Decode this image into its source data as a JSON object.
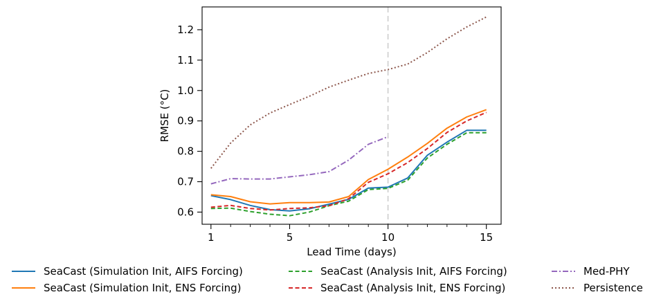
{
  "chart_data": {
    "type": "line",
    "xlabel": "Lead Time (days)",
    "ylabel": "RMSE (°C)",
    "xlim": [
      0.55,
      15.75
    ],
    "ylim": [
      0.56,
      1.275
    ],
    "x_ticks": [
      1,
      5,
      10,
      15
    ],
    "x_minor_ticks": [
      2,
      3,
      4,
      6,
      7,
      8,
      9,
      11,
      12,
      13,
      14
    ],
    "y_ticks": [
      0.6,
      0.7,
      0.8,
      0.9,
      1.0,
      1.1,
      1.2
    ],
    "y_tick_labels": [
      "0.6",
      "0.7",
      "0.8",
      "0.9",
      "1.0",
      "1.1",
      "1.2"
    ],
    "reference_line_x": 10,
    "grid": false,
    "legend_placement": "below",
    "series": [
      {
        "name": "SeaCast (Simulation Init, AIFS Forcing)",
        "color": "#1f77b4",
        "dash": "solid",
        "x": [
          1,
          2,
          3,
          4,
          5,
          6,
          7,
          8,
          9,
          10,
          11,
          12,
          13,
          14,
          15
        ],
        "values": [
          0.654,
          0.641,
          0.622,
          0.608,
          0.604,
          0.611,
          0.626,
          0.642,
          0.679,
          0.682,
          0.712,
          0.787,
          0.83,
          0.869,
          0.869
        ]
      },
      {
        "name": "SeaCast (Simulation Init, ENS Forcing)",
        "color": "#ff7f0e",
        "dash": "solid",
        "x": [
          1,
          2,
          3,
          4,
          5,
          6,
          7,
          8,
          9,
          10,
          11,
          12,
          13,
          14,
          15
        ],
        "values": [
          0.657,
          0.651,
          0.634,
          0.627,
          0.631,
          0.631,
          0.633,
          0.651,
          0.707,
          0.741,
          0.781,
          0.826,
          0.876,
          0.913,
          0.937
        ]
      },
      {
        "name": "SeaCast (Analysis Init, AIFS Forcing)",
        "color": "#2ca02c",
        "dash": "dashed",
        "x": [
          1,
          2,
          3,
          4,
          5,
          6,
          7,
          8,
          9,
          10,
          11,
          12,
          13,
          14,
          15
        ],
        "values": [
          0.612,
          0.613,
          0.602,
          0.593,
          0.588,
          0.6,
          0.621,
          0.636,
          0.674,
          0.678,
          0.705,
          0.778,
          0.823,
          0.861,
          0.861
        ]
      },
      {
        "name": "SeaCast (Analysis Init, ENS Forcing)",
        "color": "#d62728",
        "dash": "dashed",
        "x": [
          1,
          2,
          3,
          4,
          5,
          6,
          7,
          8,
          9,
          10,
          11,
          12,
          13,
          14,
          15
        ],
        "values": [
          0.616,
          0.622,
          0.612,
          0.607,
          0.612,
          0.614,
          0.621,
          0.644,
          0.698,
          0.726,
          0.763,
          0.809,
          0.862,
          0.9,
          0.928
        ]
      },
      {
        "name": "Med-PHY",
        "color": "#9467bd",
        "dash": "dashdot",
        "x": [
          1,
          2,
          3,
          4,
          5,
          6,
          7,
          8,
          9,
          10
        ],
        "values": [
          0.693,
          0.71,
          0.709,
          0.709,
          0.716,
          0.723,
          0.733,
          0.771,
          0.823,
          0.848
        ]
      },
      {
        "name": "Persistence",
        "color": "#8c564b",
        "dash": "dotted",
        "x": [
          1,
          2,
          3,
          4,
          5,
          6,
          7,
          8,
          9,
          10,
          11,
          12,
          13,
          14,
          15
        ],
        "values": [
          0.744,
          0.827,
          0.887,
          0.926,
          0.954,
          0.981,
          1.011,
          1.034,
          1.056,
          1.069,
          1.087,
          1.125,
          1.17,
          1.209,
          1.242
        ]
      }
    ]
  }
}
